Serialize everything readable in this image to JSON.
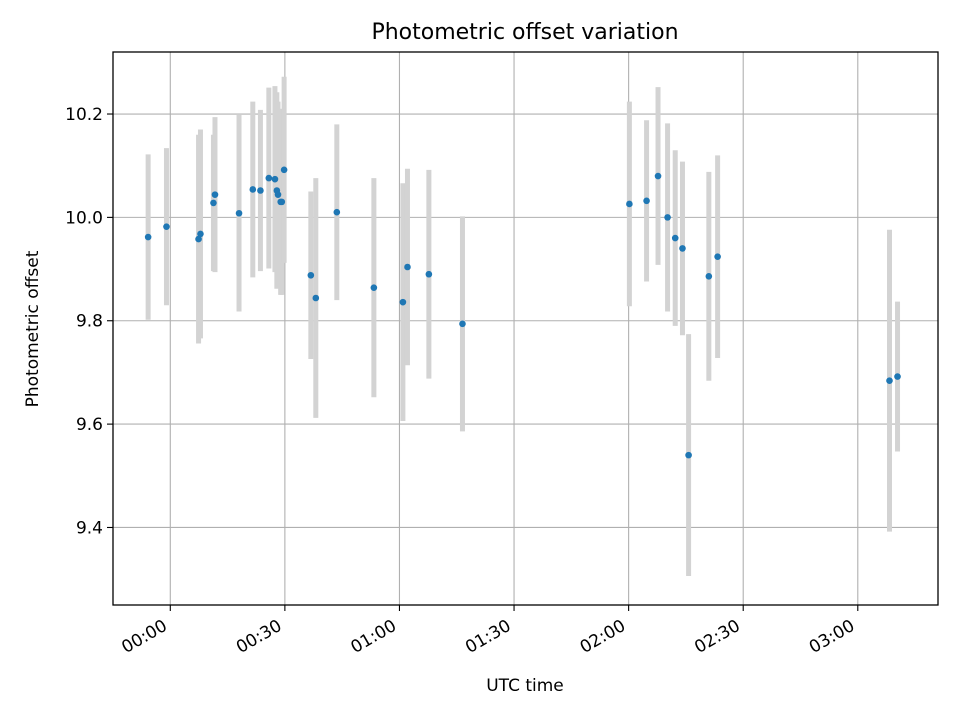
{
  "chart_data": {
    "type": "scatter",
    "title": "Photometric offset variation",
    "xlabel": "UTC time",
    "ylabel": "Photometric offset",
    "x_unit": "minutes after 00:00 UTC",
    "xlim": [
      -15,
      201
    ],
    "ylim": [
      9.25,
      10.32
    ],
    "grid": true,
    "x_ticks": [
      {
        "value": 0,
        "label": "00:00"
      },
      {
        "value": 30,
        "label": "00:30"
      },
      {
        "value": 60,
        "label": "01:00"
      },
      {
        "value": 90,
        "label": "01:30"
      },
      {
        "value": 120,
        "label": "02:00"
      },
      {
        "value": 150,
        "label": "02:30"
      },
      {
        "value": 180,
        "label": "03:00"
      }
    ],
    "y_ticks": [
      {
        "value": 9.4,
        "label": "9.4"
      },
      {
        "value": 9.6,
        "label": "9.6"
      },
      {
        "value": 9.8,
        "label": "9.8"
      },
      {
        "value": 10.0,
        "label": "10.0"
      },
      {
        "value": 10.2,
        "label": "10.2"
      }
    ],
    "colors": {
      "point": "#1f77b4",
      "errorbar": "#d3d3d3",
      "grid": "#b0b0b0",
      "axes": "#000000"
    },
    "points": [
      {
        "x": -5.8,
        "y": 9.962,
        "err": 0.16
      },
      {
        "x": -1.0,
        "y": 9.982,
        "err": 0.152
      },
      {
        "x": 7.4,
        "y": 9.958,
        "err": 0.202
      },
      {
        "x": 7.9,
        "y": 9.968,
        "err": 0.202
      },
      {
        "x": 11.3,
        "y": 10.028,
        "err": 0.132
      },
      {
        "x": 11.7,
        "y": 10.044,
        "err": 0.15
      },
      {
        "x": 18.0,
        "y": 10.008,
        "err": 0.19
      },
      {
        "x": 21.6,
        "y": 10.054,
        "err": 0.17
      },
      {
        "x": 23.6,
        "y": 10.052,
        "err": 0.156
      },
      {
        "x": 25.8,
        "y": 10.076,
        "err": 0.175
      },
      {
        "x": 27.4,
        "y": 10.074,
        "err": 0.18
      },
      {
        "x": 27.9,
        "y": 10.052,
        "err": 0.19
      },
      {
        "x": 28.2,
        "y": 10.044,
        "err": 0.18
      },
      {
        "x": 28.9,
        "y": 10.03,
        "err": 0.18
      },
      {
        "x": 29.2,
        "y": 10.03,
        "err": 0.18
      },
      {
        "x": 29.8,
        "y": 10.092,
        "err": 0.18
      },
      {
        "x": 36.8,
        "y": 9.888,
        "err": 0.162
      },
      {
        "x": 38.1,
        "y": 9.844,
        "err": 0.232
      },
      {
        "x": 43.6,
        "y": 10.01,
        "err": 0.17
      },
      {
        "x": 53.3,
        "y": 9.864,
        "err": 0.212
      },
      {
        "x": 60.9,
        "y": 9.836,
        "err": 0.23
      },
      {
        "x": 62.1,
        "y": 9.904,
        "err": 0.19
      },
      {
        "x": 67.7,
        "y": 9.89,
        "err": 0.202
      },
      {
        "x": 76.5,
        "y": 9.794,
        "err": 0.208
      },
      {
        "x": 120.2,
        "y": 10.026,
        "err": 0.198
      },
      {
        "x": 124.7,
        "y": 10.032,
        "err": 0.156
      },
      {
        "x": 127.7,
        "y": 10.08,
        "err": 0.172
      },
      {
        "x": 130.2,
        "y": 10.0,
        "err": 0.182
      },
      {
        "x": 132.2,
        "y": 9.96,
        "err": 0.17
      },
      {
        "x": 134.1,
        "y": 9.94,
        "err": 0.168
      },
      {
        "x": 135.7,
        "y": 9.54,
        "err": 0.234
      },
      {
        "x": 141.0,
        "y": 9.886,
        "err": 0.202
      },
      {
        "x": 143.3,
        "y": 9.924,
        "err": 0.196
      },
      {
        "x": 188.3,
        "y": 9.684,
        "err": 0.292
      },
      {
        "x": 190.4,
        "y": 9.692,
        "err": 0.145
      }
    ]
  }
}
